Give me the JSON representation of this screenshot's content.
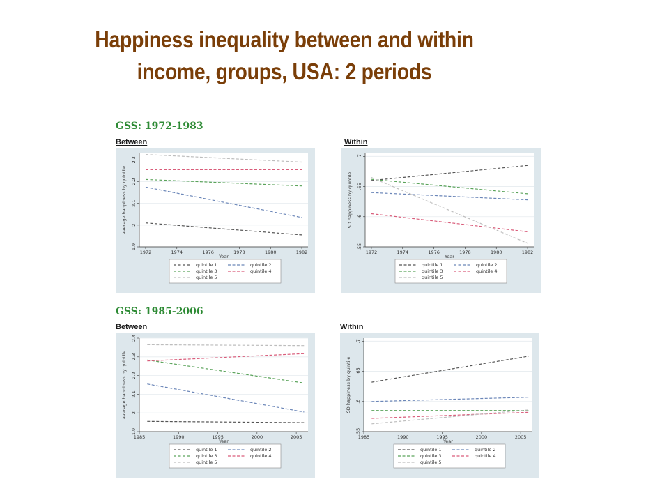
{
  "slide": {
    "title_line1": "Happiness inequality between and within",
    "title_line2": "income,  groups, USA: 2 periods"
  },
  "sections": [
    {
      "label": "GSS: 1972-1983"
    },
    {
      "label": "GSS: 1985-2006"
    }
  ],
  "chart_data": [
    {
      "type": "line",
      "panel_label": "Between",
      "xlabel": "Year",
      "ylabel": "average happiness by quintile",
      "xlim": [
        1971.6,
        1982.4
      ],
      "ylim": [
        1.9,
        2.33
      ],
      "xticks": [
        1972,
        1974,
        1976,
        1978,
        1980,
        1982
      ],
      "yticks": [
        {
          "v": 1.9,
          "t": "1.9"
        },
        {
          "v": 2,
          "t": "2"
        },
        {
          "v": 2.1,
          "t": "2.1"
        },
        {
          "v": 2.2,
          "t": "2.2"
        },
        {
          "v": 2.3,
          "t": "2.3"
        }
      ],
      "series": [
        {
          "name": "quintile 1",
          "color": "#555555",
          "x": [
            1972,
            1982
          ],
          "y": [
            2.01,
            1.955
          ]
        },
        {
          "name": "quintile 2",
          "color": "#6b86b8",
          "x": [
            1972,
            1982
          ],
          "y": [
            2.175,
            2.035
          ]
        },
        {
          "name": "quintile 3",
          "color": "#5aa35a",
          "x": [
            1972,
            1982
          ],
          "y": [
            2.21,
            2.18
          ]
        },
        {
          "name": "quintile 4",
          "color": "#d95c7a",
          "x": [
            1972,
            1982
          ],
          "y": [
            2.255,
            2.255
          ]
        },
        {
          "name": "quintile 5",
          "color": "#bdbdbd",
          "x": [
            1972,
            1982
          ],
          "y": [
            2.325,
            2.29
          ]
        }
      ]
    },
    {
      "type": "line",
      "panel_label": "Within",
      "xlabel": "Year",
      "ylabel": "SD happiness by quintile",
      "xlim": [
        1971.6,
        1982.4
      ],
      "ylim": [
        0.55,
        0.705
      ],
      "xticks": [
        1972,
        1974,
        1976,
        1978,
        1980,
        1982
      ],
      "yticks": [
        {
          "v": 0.55,
          "t": ".55"
        },
        {
          "v": 0.6,
          "t": ".6"
        },
        {
          "v": 0.65,
          "t": ".65"
        },
        {
          "v": 0.7,
          "t": ".7"
        }
      ],
      "series": [
        {
          "name": "quintile 1",
          "color": "#555555",
          "x": [
            1972,
            1982
          ],
          "y": [
            0.66,
            0.685
          ]
        },
        {
          "name": "quintile 2",
          "color": "#6b86b8",
          "x": [
            1972,
            1982
          ],
          "y": [
            0.64,
            0.628
          ]
        },
        {
          "name": "quintile 3",
          "color": "#5aa35a",
          "x": [
            1972,
            1982
          ],
          "y": [
            0.662,
            0.638
          ]
        },
        {
          "name": "quintile 4",
          "color": "#d95c7a",
          "x": [
            1972,
            1982
          ],
          "y": [
            0.605,
            0.575
          ]
        },
        {
          "name": "quintile 5",
          "color": "#bdbdbd",
          "x": [
            1972,
            1982
          ],
          "y": [
            0.665,
            0.556
          ]
        }
      ]
    },
    {
      "type": "line",
      "panel_label": "Between",
      "xlabel": "Year",
      "ylabel": "average happiness by quintile",
      "xlim": [
        1985,
        2006.5
      ],
      "ylim": [
        1.9,
        2.4
      ],
      "xticks": [
        1985,
        1990,
        1995,
        2000,
        2005
      ],
      "yticks": [
        {
          "v": 1.9,
          "t": "1.9"
        },
        {
          "v": 2,
          "t": "2"
        },
        {
          "v": 2.1,
          "t": "2.1"
        },
        {
          "v": 2.2,
          "t": "2.2"
        },
        {
          "v": 2.3,
          "t": "2.3"
        },
        {
          "v": 2.4,
          "t": "2.4"
        }
      ],
      "series": [
        {
          "name": "quintile 1",
          "color": "#555555",
          "x": [
            1986,
            2006
          ],
          "y": [
            1.955,
            1.948
          ]
        },
        {
          "name": "quintile 2",
          "color": "#6b86b8",
          "x": [
            1986,
            2006
          ],
          "y": [
            2.155,
            2.005
          ]
        },
        {
          "name": "quintile 3",
          "color": "#5aa35a",
          "x": [
            1986,
            2006
          ],
          "y": [
            2.283,
            2.16
          ]
        },
        {
          "name": "quintile 4",
          "color": "#d95c7a",
          "x": [
            1986,
            2006
          ],
          "y": [
            2.278,
            2.317
          ]
        },
        {
          "name": "quintile 5",
          "color": "#bdbdbd",
          "x": [
            1986,
            2006
          ],
          "y": [
            2.365,
            2.36
          ]
        }
      ]
    },
    {
      "type": "line",
      "panel_label": "Within",
      "xlabel": "Year",
      "ylabel": "SD happiness by quintile",
      "xlim": [
        1985,
        2006.5
      ],
      "ylim": [
        0.55,
        0.705
      ],
      "xticks": [
        1985,
        1990,
        1995,
        2000,
        2005
      ],
      "yticks": [
        {
          "v": 0.55,
          "t": ".55"
        },
        {
          "v": 0.6,
          "t": ".6"
        },
        {
          "v": 0.65,
          "t": ".65"
        },
        {
          "v": 0.7,
          "t": ".7"
        }
      ],
      "series": [
        {
          "name": "quintile 1",
          "color": "#555555",
          "x": [
            1986,
            2006
          ],
          "y": [
            0.632,
            0.675
          ]
        },
        {
          "name": "quintile 2",
          "color": "#6b86b8",
          "x": [
            1986,
            2006
          ],
          "y": [
            0.6,
            0.607
          ]
        },
        {
          "name": "quintile 3",
          "color": "#5aa35a",
          "x": [
            1986,
            2006
          ],
          "y": [
            0.585,
            0.585
          ]
        },
        {
          "name": "quintile 4",
          "color": "#d95c7a",
          "x": [
            1986,
            2006
          ],
          "y": [
            0.572,
            0.582
          ]
        },
        {
          "name": "quintile 5",
          "color": "#bdbdbd",
          "x": [
            1986,
            2006
          ],
          "y": [
            0.563,
            0.586
          ]
        }
      ]
    }
  ]
}
